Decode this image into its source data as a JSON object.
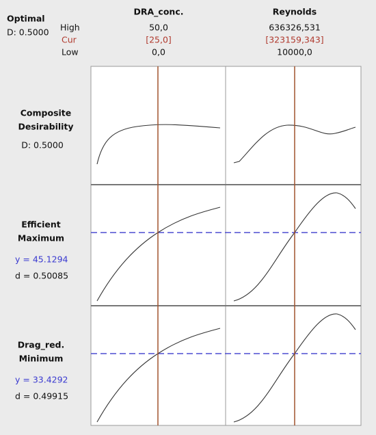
{
  "header": {
    "title": "Optimal",
    "desirability": "D: 0.5000"
  },
  "levels": {
    "high": "High",
    "cur": "Cur",
    "low": "Low"
  },
  "factors": [
    {
      "name": "DRA_conc.",
      "high": "50,0",
      "cur": "[25,0]",
      "low": "0,0"
    },
    {
      "name": "Reynolds",
      "high": "636326,531",
      "cur": "[323159,343]",
      "low": "10000,0"
    }
  ],
  "responses": [
    {
      "lines": [
        "Composite",
        "Desirability"
      ],
      "d": "D: 0.5000"
    },
    {
      "lines": [
        "Efficient",
        "Maximum"
      ],
      "y": "y = 45.1294",
      "d": "d = 0.50085"
    },
    {
      "lines": [
        "Drag_red.",
        "Minimum"
      ],
      "y": "y = 33.4292",
      "d": "d = 0.49915"
    }
  ]
}
